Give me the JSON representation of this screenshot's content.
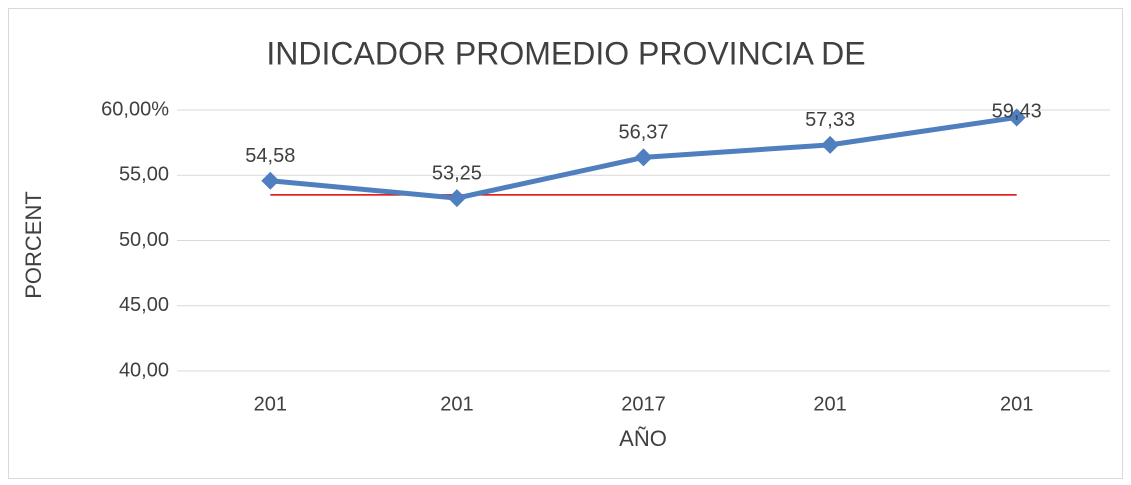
{
  "chart_data": {
    "type": "line",
    "title": "INDICADOR PROMEDIO PROVINCIA DE",
    "x_label": "AÑO",
    "y_label": "PORCENT",
    "categories": [
      "201",
      "201",
      "2017",
      "201",
      "201"
    ],
    "series": [
      {
        "color": "#4f7fbe",
        "values": [
          54.58,
          53.25,
          56.37,
          57.33,
          59.43
        ],
        "value_labels": [
          "54,58",
          "53,25",
          "56,37",
          "57,33",
          "59,43"
        ]
      },
      {
        "color": "#e00000",
        "values": [
          53.5,
          53.5,
          53.5,
          53.5,
          53.5
        ]
      }
    ],
    "ylim": [
      40,
      60
    ],
    "yticks": [
      {
        "value": 40,
        "label": "40,00"
      },
      {
        "value": 45,
        "label": "45,00"
      },
      {
        "value": 50,
        "label": "50,00"
      },
      {
        "value": 55,
        "label": "55,00"
      },
      {
        "value": 60,
        "label": "60,00%"
      }
    ],
    "grid": true
  }
}
